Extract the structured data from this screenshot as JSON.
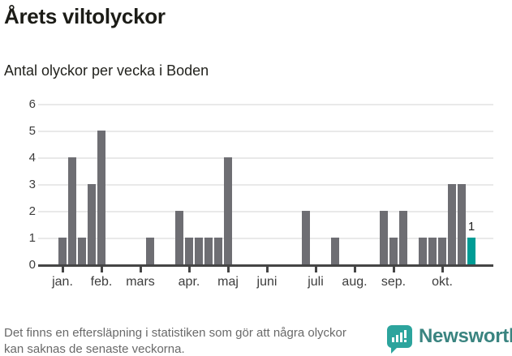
{
  "header": {
    "title": "Årets viltolyckor",
    "subtitle": "Antal olyckor per vecka i Boden"
  },
  "chart_data": {
    "type": "bar",
    "title": "Årets viltolyckor",
    "subtitle": "Antal olyckor per vecka i Boden",
    "x_unit": "week",
    "weeks": 43,
    "values": [
      1,
      4,
      1,
      3,
      5,
      0,
      0,
      0,
      0,
      1,
      0,
      0,
      2,
      1,
      1,
      1,
      1,
      4,
      0,
      0,
      0,
      0,
      0,
      0,
      0,
      2,
      0,
      0,
      1,
      0,
      0,
      0,
      0,
      2,
      1,
      2,
      0,
      1,
      1,
      1,
      3,
      3,
      1
    ],
    "highlight": {
      "week": 43,
      "value": 1,
      "label": "1"
    },
    "ylim": [
      0,
      6
    ],
    "yticks": [
      0,
      1,
      2,
      3,
      4,
      5,
      6
    ],
    "grid": "horizontal",
    "month_ticks": [
      {
        "label": "jan.",
        "week": 1
      },
      {
        "label": "feb.",
        "week": 5
      },
      {
        "label": "mars",
        "week": 9
      },
      {
        "label": "apr.",
        "week": 14
      },
      {
        "label": "maj",
        "week": 18
      },
      {
        "label": "juni",
        "week": 22
      },
      {
        "label": "juli",
        "week": 27
      },
      {
        "label": "aug.",
        "week": 31
      },
      {
        "label": "sep.",
        "week": 35
      },
      {
        "label": "okt.",
        "week": 40
      }
    ],
    "colors": {
      "bar": "#6e6e73",
      "highlight": "#009c95",
      "axis": "#454545",
      "grid": "#e9e9e9",
      "tick_text": "#3d3d3d"
    }
  },
  "footer": {
    "note": "Det finns en eftersläpning i statistiken som gör att några olyckor kan saknas de senaste veckorna.",
    "brand": "Newsworthy"
  }
}
